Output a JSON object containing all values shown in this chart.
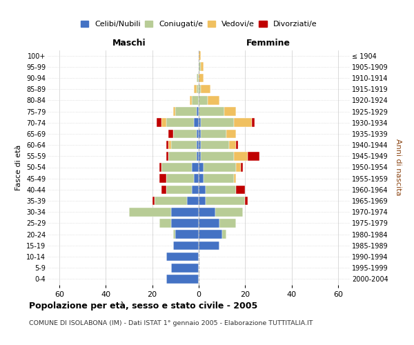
{
  "age_groups": [
    "0-4",
    "5-9",
    "10-14",
    "15-19",
    "20-24",
    "25-29",
    "30-34",
    "35-39",
    "40-44",
    "45-49",
    "50-54",
    "55-59",
    "60-64",
    "65-69",
    "70-74",
    "75-79",
    "80-84",
    "85-89",
    "90-94",
    "95-99",
    "100+"
  ],
  "birth_years": [
    "2000-2004",
    "1995-1999",
    "1990-1994",
    "1985-1989",
    "1980-1984",
    "1975-1979",
    "1970-1974",
    "1965-1969",
    "1960-1964",
    "1955-1959",
    "1950-1954",
    "1945-1949",
    "1940-1944",
    "1935-1939",
    "1930-1934",
    "1925-1929",
    "1920-1924",
    "1915-1919",
    "1910-1914",
    "1905-1909",
    "≤ 1904"
  ],
  "male": {
    "celibi": [
      14,
      12,
      14,
      11,
      10,
      12,
      12,
      5,
      3,
      2,
      3,
      1,
      1,
      1,
      2,
      1,
      0,
      0,
      0,
      0,
      0
    ],
    "coniugati": [
      0,
      0,
      0,
      0,
      1,
      5,
      18,
      14,
      11,
      12,
      13,
      12,
      11,
      10,
      12,
      9,
      3,
      1,
      1,
      0,
      0
    ],
    "vedovi": [
      0,
      0,
      0,
      0,
      0,
      0,
      0,
      0,
      0,
      0,
      0,
      0,
      1,
      0,
      2,
      1,
      1,
      1,
      0,
      0,
      0
    ],
    "divorziati": [
      0,
      0,
      0,
      0,
      0,
      0,
      0,
      1,
      2,
      3,
      1,
      1,
      1,
      2,
      2,
      0,
      0,
      0,
      0,
      0,
      0
    ]
  },
  "female": {
    "nubili": [
      0,
      0,
      0,
      9,
      10,
      9,
      7,
      3,
      3,
      2,
      2,
      1,
      1,
      1,
      1,
      0,
      0,
      0,
      0,
      0,
      0
    ],
    "coniugate": [
      0,
      0,
      0,
      0,
      2,
      7,
      12,
      17,
      13,
      13,
      14,
      14,
      12,
      11,
      14,
      11,
      4,
      1,
      0,
      1,
      0
    ],
    "vedove": [
      0,
      0,
      0,
      0,
      0,
      0,
      0,
      0,
      0,
      1,
      2,
      6,
      3,
      4,
      8,
      5,
      5,
      4,
      2,
      1,
      1
    ],
    "divorziate": [
      0,
      0,
      0,
      0,
      0,
      0,
      0,
      1,
      4,
      0,
      1,
      5,
      1,
      0,
      1,
      0,
      0,
      0,
      0,
      0,
      0
    ]
  },
  "colors": {
    "celibi": "#4472c4",
    "coniugati": "#b8cc96",
    "vedovi": "#f0c060",
    "divorziati": "#c00000"
  },
  "xlim": 65,
  "xticks": [
    -60,
    -40,
    -20,
    0,
    20,
    40,
    60
  ],
  "xtick_labels": [
    "60",
    "40",
    "20",
    "0",
    "20",
    "40",
    "60"
  ],
  "title": "Popolazione per età, sesso e stato civile - 2005",
  "subtitle": "COMUNE DI ISOLABONA (IM) - Dati ISTAT 1° gennaio 2005 - Elaborazione TUTTITALIA.IT",
  "ylabel_left": "Fasce di età",
  "ylabel_right": "Anni di nascita",
  "header_maschi": "Maschi",
  "header_femmine": "Femmine",
  "legend_labels": [
    "Celibi/Nubili",
    "Coniugati/e",
    "Vedovi/e",
    "Divorziati/e"
  ]
}
